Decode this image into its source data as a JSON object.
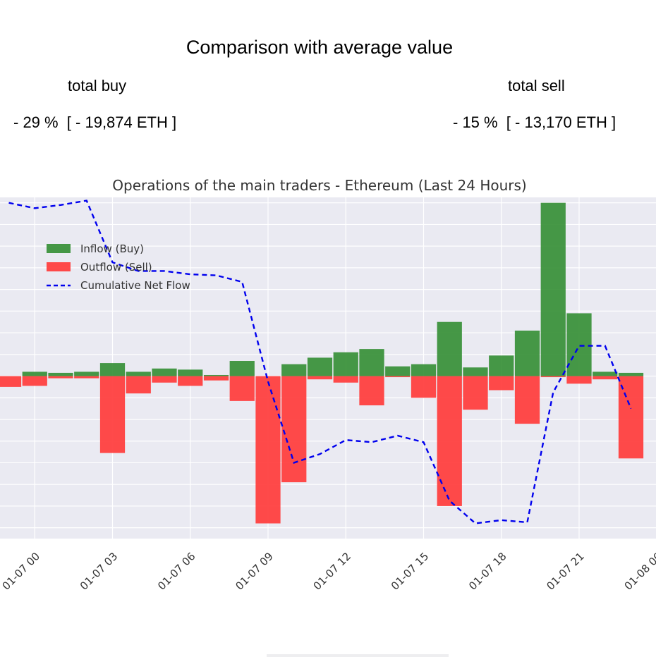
{
  "header": {
    "title": "Comparison with average value",
    "buy_label": "total buy",
    "buy_value": "- 29 %  [ - 19,874 ETH ]",
    "sell_label": "total sell",
    "sell_value": "- 15 %  [ - 13,170 ETH ]"
  },
  "colors": {
    "inflow": "#2e8b2e",
    "outflow": "#ff3b3b",
    "net": "#0000ee",
    "plot_bg": "#eaeaf2",
    "grid": "#ffffff"
  },
  "chart_data": {
    "type": "bar",
    "title": "Operations of the main traders - Ethereum (Last 24 Hours)",
    "xlabel": "",
    "ylabel": "",
    "x": [
      "01-06 23",
      "01-07 00",
      "01-07 01",
      "01-07 02",
      "01-07 03",
      "01-07 04",
      "01-07 05",
      "01-07 06",
      "01-07 07",
      "01-07 08",
      "01-07 09",
      "01-07 10",
      "01-07 11",
      "01-07 12",
      "01-07 13",
      "01-07 14",
      "01-07 15",
      "01-07 16",
      "01-07 17",
      "01-07 18",
      "01-07 19",
      "01-07 20",
      "01-07 21",
      "01-07 22",
      "01-07 23"
    ],
    "tick_labels": [
      "01-07 00",
      "01-07 03",
      "01-07 06",
      "01-07 09",
      "01-07 12",
      "01-07 15",
      "01-07 18",
      "01-07 21",
      "01-08 00"
    ],
    "series": [
      {
        "name": "Inflow (Buy)",
        "type": "bar",
        "values": [
          0,
          4,
          3,
          4,
          12,
          4,
          7,
          6,
          1,
          14,
          0,
          11,
          17,
          22,
          25,
          9,
          11,
          50,
          8,
          19,
          42,
          160,
          58,
          4,
          3
        ]
      },
      {
        "name": "Outflow (Sell)",
        "type": "bar",
        "values": [
          -10,
          -9,
          -2,
          -2,
          -71,
          -16,
          -6,
          -9,
          -4,
          -23,
          -136,
          -98,
          -3,
          -6,
          -27,
          -1,
          -20,
          -120,
          -31,
          -13,
          -44,
          -1,
          -7,
          -3,
          -76
        ]
      },
      {
        "name": "Cumulative Net Flow",
        "type": "line",
        "style": "dashed",
        "values": [
          160,
          155,
          158,
          162,
          105,
          97,
          97,
          94,
          93,
          87,
          -5,
          -80,
          -72,
          -59,
          -61,
          -55,
          -61,
          -115,
          -136,
          -133,
          -135,
          -15,
          28,
          28,
          -30
        ]
      }
    ],
    "ylim": [
      -150,
      165
    ],
    "grid": true,
    "legend": "top-left"
  }
}
